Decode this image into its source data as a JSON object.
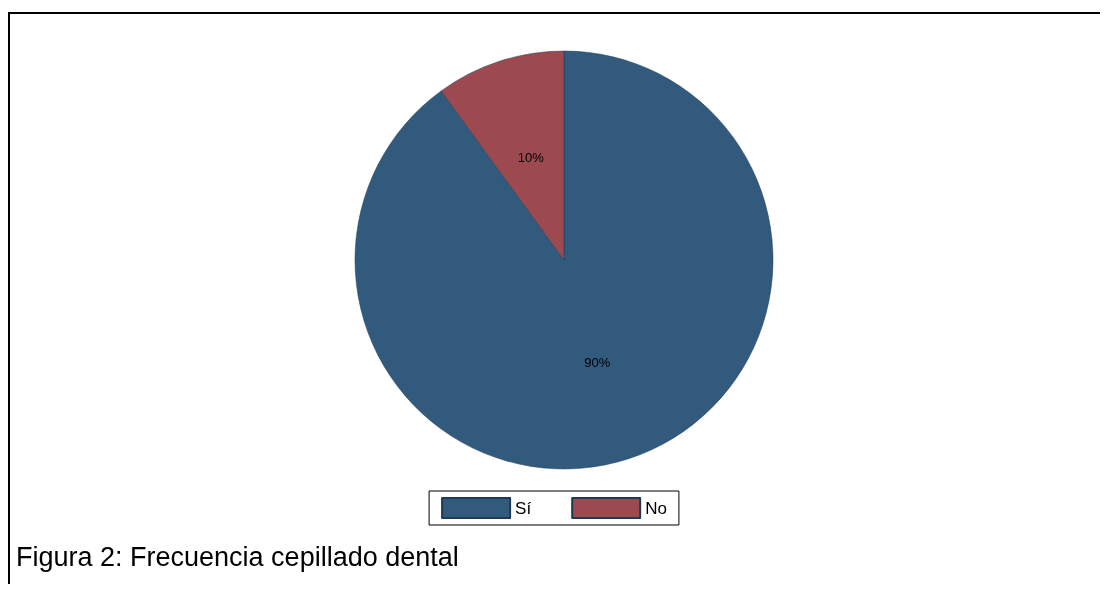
{
  "chart_data": {
    "type": "pie",
    "categories": [
      "Sí",
      "No"
    ],
    "values": [
      90,
      10
    ],
    "colors": [
      "#325a7d",
      "#9c4a50"
    ],
    "value_labels": [
      "90%",
      "10%"
    ],
    "legend": "bottom",
    "annotations": [
      "Figura 2: Frecuencia cepillado dental"
    ]
  }
}
